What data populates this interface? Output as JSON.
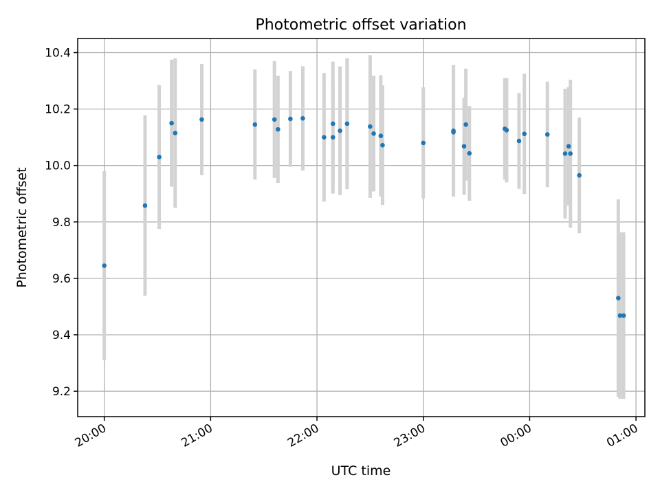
{
  "chart_data": {
    "type": "scatter",
    "title": "Photometric offset variation",
    "xlabel": "UTC time",
    "ylabel": "Photometric offset",
    "x_ticks": [
      "20:00",
      "21:00",
      "22:00",
      "23:00",
      "00:00",
      "01:00"
    ],
    "y_ticks": [
      "9.2",
      "9.4",
      "9.6",
      "9.8",
      "10.0",
      "10.2",
      "10.4"
    ],
    "xlim": [
      "19:45",
      "01:05"
    ],
    "ylim": [
      9.11,
      10.45
    ],
    "grid": true,
    "colors": {
      "point": "#1f77b4",
      "errorbar": "#d3d3d3",
      "grid": "#b0b0b0"
    },
    "points": [
      {
        "t": "20:00",
        "y": 9.645,
        "err": 0.335
      },
      {
        "t": "20:23",
        "y": 9.858,
        "err": 0.32
      },
      {
        "t": "20:31",
        "y": 10.03,
        "err": 0.255
      },
      {
        "t": "20:38",
        "y": 10.15,
        "err": 0.225
      },
      {
        "t": "20:40",
        "y": 10.115,
        "err": 0.265
      },
      {
        "t": "20:55",
        "y": 10.163,
        "err": 0.197
      },
      {
        "t": "21:25",
        "y": 10.145,
        "err": 0.195
      },
      {
        "t": "21:36",
        "y": 10.163,
        "err": 0.207
      },
      {
        "t": "21:38",
        "y": 10.128,
        "err": 0.19
      },
      {
        "t": "21:45",
        "y": 10.165,
        "err": 0.17
      },
      {
        "t": "21:52",
        "y": 10.167,
        "err": 0.185
      },
      {
        "t": "22:04",
        "y": 10.1,
        "err": 0.228
      },
      {
        "t": "22:09",
        "y": 10.1,
        "err": 0.2
      },
      {
        "t": "22:09",
        "y": 10.148,
        "err": 0.22
      },
      {
        "t": "22:13",
        "y": 10.123,
        "err": 0.228
      },
      {
        "t": "22:17",
        "y": 10.148,
        "err": 0.232
      },
      {
        "t": "22:30",
        "y": 10.138,
        "err": 0.253
      },
      {
        "t": "22:32",
        "y": 10.113,
        "err": 0.205
      },
      {
        "t": "22:36",
        "y": 10.105,
        "err": 0.215
      },
      {
        "t": "22:37",
        "y": 10.072,
        "err": 0.212
      },
      {
        "t": "23:00",
        "y": 10.08,
        "err": 0.197
      },
      {
        "t": "23:17",
        "y": 10.123,
        "err": 0.233
      },
      {
        "t": "23:17",
        "y": 10.118,
        "err": 0.22
      },
      {
        "t": "23:23",
        "y": 10.068,
        "err": 0.172
      },
      {
        "t": "23:24",
        "y": 10.145,
        "err": 0.198
      },
      {
        "t": "23:26",
        "y": 10.043,
        "err": 0.168
      },
      {
        "t": "23:46",
        "y": 10.13,
        "err": 0.18
      },
      {
        "t": "23:47",
        "y": 10.125,
        "err": 0.185
      },
      {
        "t": "23:54",
        "y": 10.087,
        "err": 0.17
      },
      {
        "t": "23:57",
        "y": 10.112,
        "err": 0.213
      },
      {
        "t": "00:10",
        "y": 10.11,
        "err": 0.187
      },
      {
        "t": "00:20",
        "y": 10.042,
        "err": 0.23
      },
      {
        "t": "00:22",
        "y": 10.068,
        "err": 0.21
      },
      {
        "t": "00:23",
        "y": 10.042,
        "err": 0.262
      },
      {
        "t": "00:28",
        "y": 9.965,
        "err": 0.205
      },
      {
        "t": "00:50",
        "y": 9.53,
        "err": 0.35
      },
      {
        "t": "00:51",
        "y": 9.468,
        "err": 0.295
      },
      {
        "t": "00:53",
        "y": 9.468,
        "err": 0.295
      }
    ]
  }
}
